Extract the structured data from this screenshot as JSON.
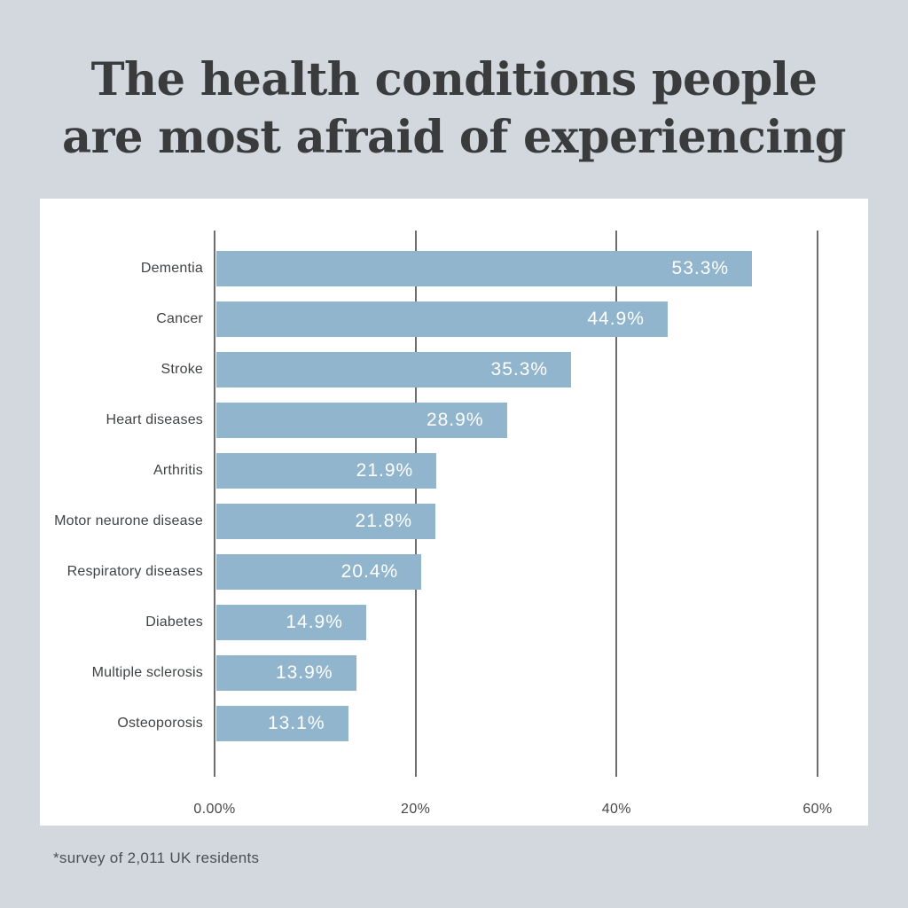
{
  "page": {
    "background_color": "#d2d8de",
    "panel_color": "#ffffff",
    "title": "The health conditions people are most afraid of experiencing",
    "footnote": "*survey of 2,011 UK residents"
  },
  "chart_data": {
    "type": "bar",
    "orientation": "horizontal",
    "title": "The health conditions people are most afraid of experiencing",
    "categories": [
      "Dementia",
      "Cancer",
      "Stroke",
      "Heart diseases",
      "Arthritis",
      "Motor neurone disease",
      "Respiratory diseases",
      "Diabetes",
      "Multiple sclerosis",
      "Osteoporosis"
    ],
    "values": [
      53.3,
      44.9,
      35.3,
      28.9,
      21.9,
      21.8,
      20.4,
      14.9,
      13.9,
      13.1
    ],
    "value_labels": [
      "53.3%",
      "44.9%",
      "35.3%",
      "28.9%",
      "21.9%",
      "21.8%",
      "20.4%",
      "14.9%",
      "13.9%",
      "13.1%"
    ],
    "x_ticks": [
      "0.00%",
      "20%",
      "40%",
      "60%"
    ],
    "xlim": [
      0,
      60
    ],
    "xlabel": "",
    "ylabel": "",
    "grid": true,
    "legend_position": "none",
    "bar_color": "#90b5cd",
    "gridline_color": "#6d6d6d",
    "value_label_color": "#ffffff"
  }
}
